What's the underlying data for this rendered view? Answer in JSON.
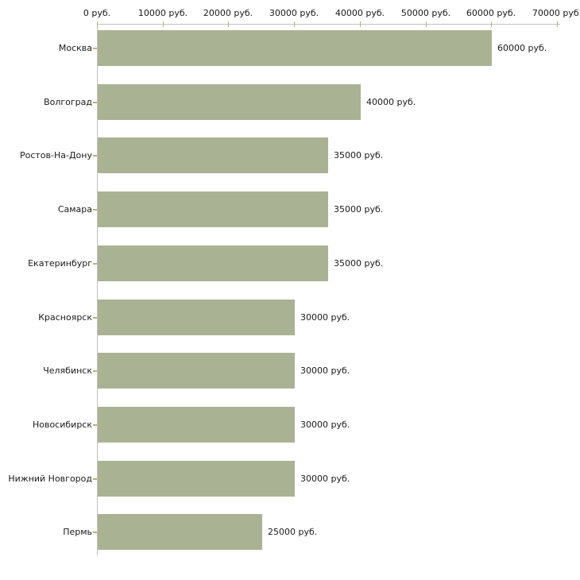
{
  "chart_data": {
    "type": "bar",
    "orientation": "horizontal",
    "unit": "руб.",
    "categories": [
      "Москва",
      "Волгоград",
      "Ростов-На-Дону",
      "Самара",
      "Екатеринбург",
      "Красноярск",
      "Челябинск",
      "Новосибирск",
      "Нижний Новгород",
      "Пермь"
    ],
    "values": [
      60000,
      40000,
      35000,
      35000,
      35000,
      30000,
      30000,
      30000,
      30000,
      25000
    ],
    "value_labels": [
      "60000 руб.",
      "40000 руб.",
      "35000 руб.",
      "35000 руб.",
      "35000 руб.",
      "30000 руб.",
      "30000 руб.",
      "30000 руб.",
      "30000 руб.",
      "25000 руб."
    ],
    "x_tick_values": [
      0,
      10000,
      20000,
      30000,
      40000,
      50000,
      60000,
      70000
    ],
    "x_tick_labels": [
      "0 руб.",
      "10000 руб.",
      "20000 руб.",
      "30000 руб.",
      "40000 руб.",
      "50000 руб.",
      "60000 руб.",
      "70000 руб."
    ],
    "xlim": [
      0,
      70000
    ],
    "grid": false,
    "legend": null,
    "colors": {
      "bar": "#aab294",
      "axis": "#c0c0c0",
      "tick": "#b8af77",
      "text": "#1a1a1a",
      "background": "#ffffff"
    }
  }
}
